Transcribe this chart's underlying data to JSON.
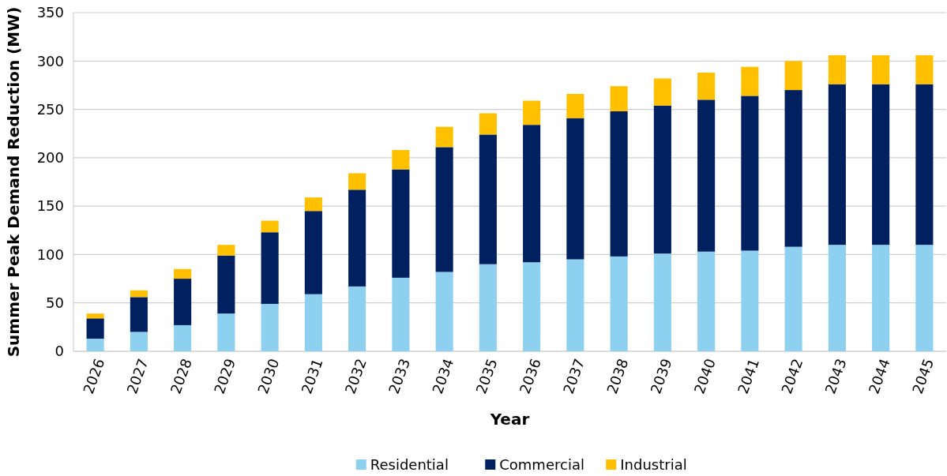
{
  "chart_data": {
    "type": "bar",
    "stacked": true,
    "xlabel": "Year",
    "ylabel": "Summer Peak Demand Reduction (MW)",
    "categories": [
      "2026",
      "2027",
      "2028",
      "2029",
      "2030",
      "2031",
      "2032",
      "2033",
      "2034",
      "2035",
      "2036",
      "2037",
      "2038",
      "2039",
      "2040",
      "2041",
      "2042",
      "2043",
      "2044",
      "2045"
    ],
    "series": [
      {
        "name": "Residential",
        "color": "#8ed0f0",
        "values": [
          13,
          20,
          27,
          39,
          49,
          59,
          67,
          76,
          82,
          90,
          92,
          95,
          98,
          101,
          103,
          104,
          108,
          110,
          110,
          110
        ]
      },
      {
        "name": "Commercial",
        "color": "#002060",
        "values": [
          21,
          36,
          48,
          60,
          74,
          86,
          100,
          112,
          129,
          134,
          142,
          146,
          150,
          153,
          157,
          160,
          162,
          166,
          166,
          166
        ]
      },
      {
        "name": "Industrial",
        "color": "#ffc000",
        "values": [
          5,
          7,
          10,
          11,
          12,
          14,
          17,
          20,
          21,
          22,
          25,
          25,
          26,
          28,
          28,
          30,
          30,
          30,
          30,
          30
        ]
      }
    ],
    "ylim": [
      0,
      350
    ],
    "yticks": [
      0,
      50,
      100,
      150,
      200,
      250,
      300,
      350
    ],
    "grid": "y",
    "legend": "bottom"
  }
}
